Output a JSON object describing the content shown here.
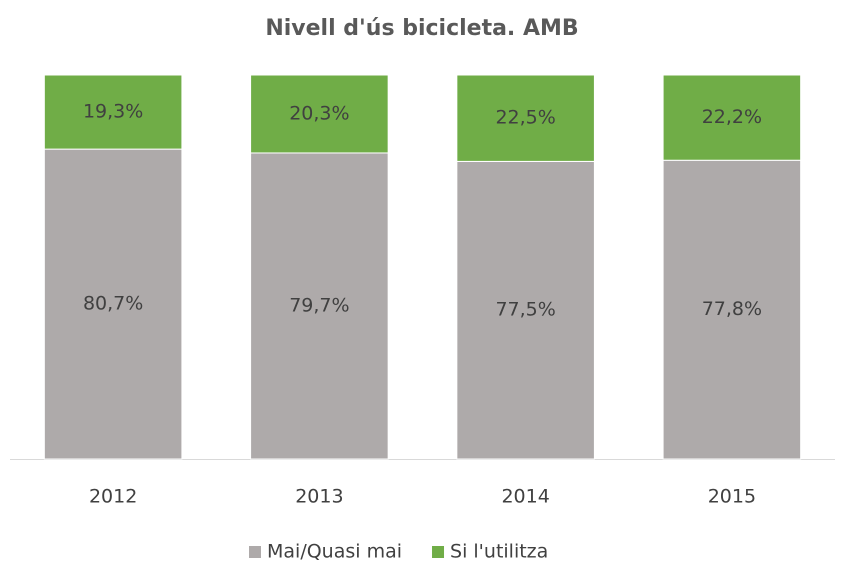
{
  "chart_data": {
    "type": "stacked_bar",
    "title": "Nivell d'ús bicicleta. AMB",
    "categories": [
      "2012",
      "2013",
      "2014",
      "2015"
    ],
    "series": [
      {
        "name": "Mai/Quasi mai",
        "color": "#aeaaaa",
        "values": [
          80.7,
          79.7,
          77.5,
          77.8
        ],
        "value_labels": [
          "80,7%",
          "79,7%",
          "77,5%",
          "77,8%"
        ]
      },
      {
        "name": "Si l'utilitza",
        "color": "#70ad47",
        "values": [
          19.3,
          20.3,
          22.5,
          22.2
        ],
        "value_labels": [
          "19,3%",
          "20,3%",
          "22,5%",
          "22,2%"
        ]
      }
    ],
    "legend": "bottom"
  }
}
